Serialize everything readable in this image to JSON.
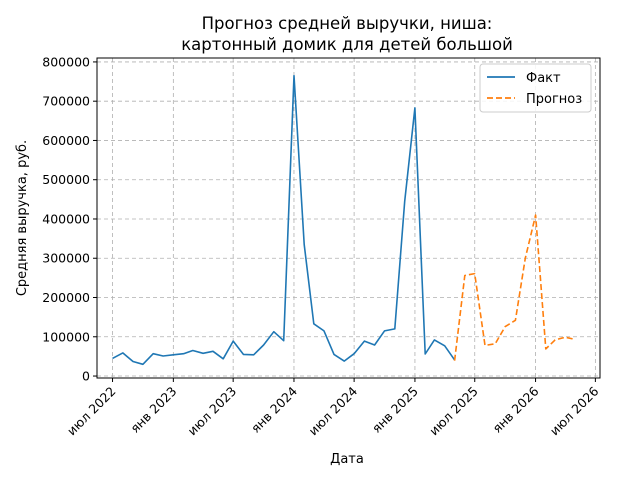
{
  "chart_data": {
    "type": "line",
    "title": [
      "Прогноз средней выручки, ниша:",
      "картонный домик для детей большой"
    ],
    "xlabel": "Дата",
    "ylabel": "Средняя выручка, руб.",
    "ylim": [
      -5000,
      810000
    ],
    "xlim": [
      "2022-05-15",
      "2026-07-15"
    ],
    "grid": true,
    "legend_position": "top-right",
    "x_ticks": [
      {
        "date": "2022-07-01",
        "label": "июл 2022"
      },
      {
        "date": "2023-01-01",
        "label": "янв 2023"
      },
      {
        "date": "2023-07-01",
        "label": "июл 2023"
      },
      {
        "date": "2024-01-01",
        "label": "янв 2024"
      },
      {
        "date": "2024-07-01",
        "label": "июл 2024"
      },
      {
        "date": "2025-01-01",
        "label": "янв 2025"
      },
      {
        "date": "2025-07-01",
        "label": "июл 2025"
      },
      {
        "date": "2026-01-01",
        "label": "янв 2026"
      },
      {
        "date": "2026-07-01",
        "label": "июл 2026"
      }
    ],
    "y_ticks": [
      {
        "value": 0,
        "label": "0"
      },
      {
        "value": 100000,
        "label": "100000"
      },
      {
        "value": 200000,
        "label": "200000"
      },
      {
        "value": 300000,
        "label": "300000"
      },
      {
        "value": 400000,
        "label": "400000"
      },
      {
        "value": 500000,
        "label": "500000"
      },
      {
        "value": 600000,
        "label": "600000"
      },
      {
        "value": 700000,
        "label": "700000"
      },
      {
        "value": 800000,
        "label": "800000"
      }
    ],
    "series": [
      {
        "name": "Факт",
        "color": "#1f77b4",
        "style": "solid",
        "points": [
          [
            "2022-07-01",
            45000
          ],
          [
            "2022-08-01",
            59000
          ],
          [
            "2022-09-01",
            37000
          ],
          [
            "2022-10-01",
            30000
          ],
          [
            "2022-11-01",
            57000
          ],
          [
            "2022-12-01",
            51000
          ],
          [
            "2023-01-01",
            54000
          ],
          [
            "2023-02-01",
            57000
          ],
          [
            "2023-03-01",
            65000
          ],
          [
            "2023-04-01",
            58000
          ],
          [
            "2023-05-01",
            63000
          ],
          [
            "2023-06-01",
            44000
          ],
          [
            "2023-07-01",
            89000
          ],
          [
            "2023-08-01",
            55000
          ],
          [
            "2023-09-01",
            54000
          ],
          [
            "2023-10-01",
            79000
          ],
          [
            "2023-11-01",
            113000
          ],
          [
            "2023-12-01",
            90000
          ],
          [
            "2024-01-01",
            765000
          ],
          [
            "2024-02-01",
            335000
          ],
          [
            "2024-03-01",
            133000
          ],
          [
            "2024-04-01",
            115000
          ],
          [
            "2024-05-01",
            55000
          ],
          [
            "2024-06-01",
            38000
          ],
          [
            "2024-07-01",
            57000
          ],
          [
            "2024-08-01",
            89000
          ],
          [
            "2024-09-01",
            79000
          ],
          [
            "2024-10-01",
            115000
          ],
          [
            "2024-11-01",
            120000
          ],
          [
            "2024-12-01",
            445000
          ],
          [
            "2025-01-01",
            683000
          ],
          [
            "2025-02-01",
            56000
          ],
          [
            "2025-03-01",
            92000
          ],
          [
            "2025-04-01",
            77000
          ],
          [
            "2025-05-01",
            41000
          ]
        ]
      },
      {
        "name": "Прогноз",
        "color": "#ff7f0e",
        "style": "dashed",
        "points": [
          [
            "2025-05-01",
            39000
          ],
          [
            "2025-06-01",
            256000
          ],
          [
            "2025-07-01",
            261000
          ],
          [
            "2025-08-01",
            78000
          ],
          [
            "2025-09-01",
            82000
          ],
          [
            "2025-10-01",
            126000
          ],
          [
            "2025-11-01",
            142000
          ],
          [
            "2025-12-01",
            300000
          ],
          [
            "2026-01-01",
            410000
          ],
          [
            "2026-02-01",
            69000
          ],
          [
            "2026-03-01",
            92000
          ],
          [
            "2026-04-01",
            99000
          ],
          [
            "2026-05-01",
            93000
          ]
        ]
      }
    ]
  }
}
